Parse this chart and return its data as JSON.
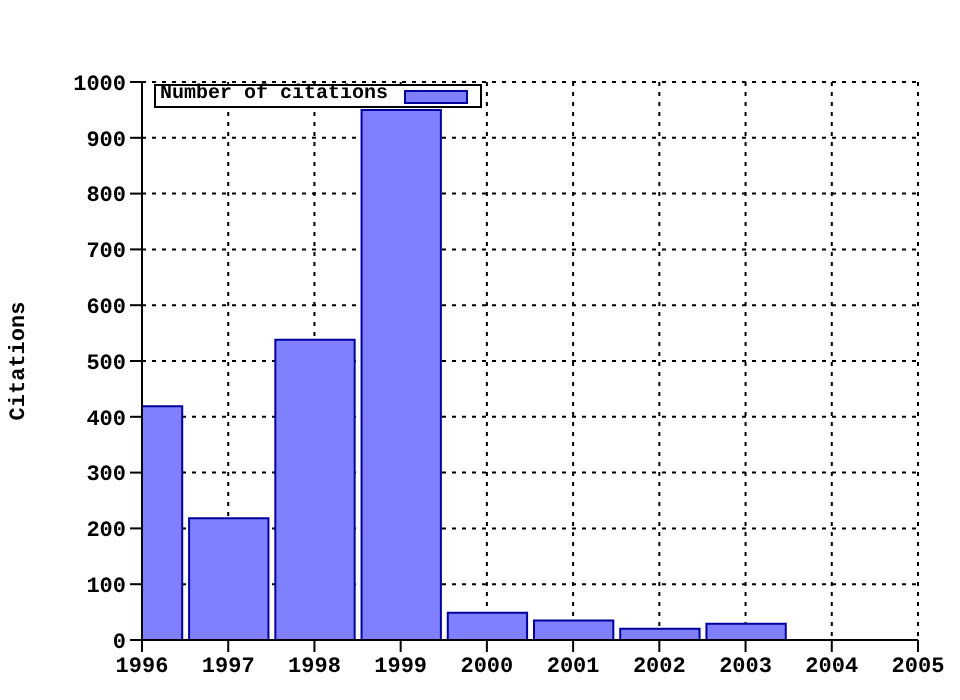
{
  "chart_data": {
    "type": "bar",
    "ylabel": "Citations",
    "x": [
      1996,
      1997,
      1998,
      1999,
      2000,
      2001,
      2002,
      2003
    ],
    "series": [
      {
        "name": "Number of citations",
        "color": "#8080ff",
        "values": [
          419,
          218,
          538,
          950,
          49,
          35,
          20,
          29
        ]
      }
    ],
    "xlim": [
      1996,
      2005
    ],
    "xticks": [
      1996,
      1997,
      1998,
      1999,
      2000,
      2001,
      2002,
      2003,
      2004,
      2005
    ],
    "ylim": [
      0,
      1000
    ],
    "yticks": [
      0,
      100,
      200,
      300,
      400,
      500,
      600,
      700,
      800,
      900,
      1000
    ],
    "grid": true,
    "legend": "top left"
  }
}
